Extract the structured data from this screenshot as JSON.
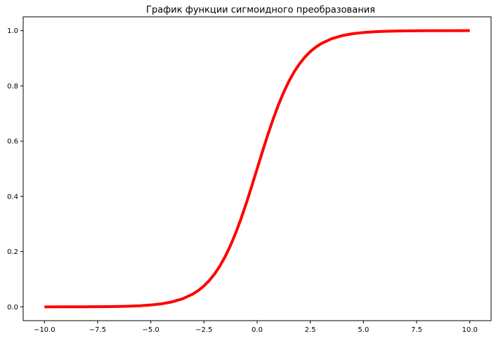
{
  "chart_data": {
    "type": "line",
    "title": "График функции сигмоидного преобразования",
    "xlabel": "",
    "ylabel": "",
    "xlim": [
      -11.0,
      11.0
    ],
    "ylim": [
      -0.05,
      1.05
    ],
    "x_ticks": [
      -10.0,
      -7.5,
      -5.0,
      -2.5,
      0.0,
      2.5,
      5.0,
      7.5,
      10.0
    ],
    "x_tick_labels": [
      "−10.0",
      "−7.5",
      "−5.0",
      "−2.5",
      "0.0",
      "2.5",
      "5.0",
      "7.5",
      "10.0"
    ],
    "y_ticks": [
      0.0,
      0.2,
      0.4,
      0.6,
      0.8,
      1.0
    ],
    "y_tick_labels": [
      "0.0",
      "0.2",
      "0.4",
      "0.6",
      "0.8",
      "1.0"
    ],
    "grid": false,
    "legend": "none",
    "series": [
      {
        "color": "#ff0000",
        "x": [
          -10.0,
          -9.0,
          -8.0,
          -7.5,
          -7.0,
          -6.5,
          -6.0,
          -5.5,
          -5.0,
          -4.5,
          -4.0,
          -3.5,
          -3.0,
          -2.75,
          -2.5,
          -2.25,
          -2.0,
          -1.75,
          -1.5,
          -1.25,
          -1.0,
          -0.75,
          -0.5,
          -0.25,
          0.0,
          0.25,
          0.5,
          0.75,
          1.0,
          1.25,
          1.5,
          1.75,
          2.0,
          2.25,
          2.5,
          2.75,
          3.0,
          3.5,
          4.0,
          4.5,
          5.0,
          5.5,
          6.0,
          6.5,
          7.0,
          7.5,
          8.0,
          9.0,
          10.0
        ],
        "y": [
          0.0,
          0.0001,
          0.0003,
          0.0006,
          0.0009,
          0.0015,
          0.0025,
          0.0041,
          0.0067,
          0.011,
          0.018,
          0.0293,
          0.0474,
          0.0601,
          0.0759,
          0.0953,
          0.1192,
          0.148,
          0.1824,
          0.2227,
          0.2689,
          0.3208,
          0.3775,
          0.4378,
          0.5,
          0.5622,
          0.6225,
          0.6792,
          0.7311,
          0.7773,
          0.8176,
          0.852,
          0.8808,
          0.9047,
          0.9241,
          0.9399,
          0.9526,
          0.9707,
          0.982,
          0.989,
          0.9933,
          0.9959,
          0.9975,
          0.9985,
          0.9991,
          0.9994,
          0.9997,
          0.9999,
          1.0
        ]
      }
    ]
  }
}
